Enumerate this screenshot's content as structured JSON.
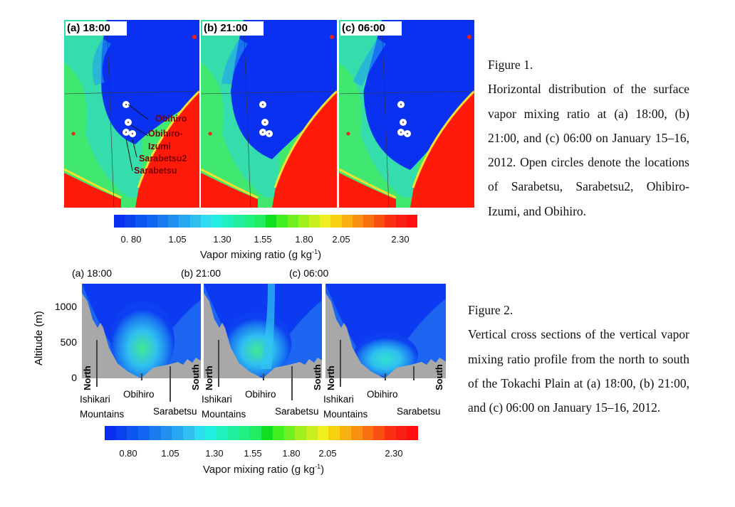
{
  "figure1": {
    "panels": [
      {
        "label": "(a) 18:00",
        "blue_extent": 0.25
      },
      {
        "label": "(b) 21:00",
        "blue_extent": 0.6
      },
      {
        "label": "(c) 06:00",
        "blue_extent": 0.85
      }
    ],
    "stations": [
      "Obihiro",
      "Obihiro-",
      "Izumi",
      "Sarabetsu2",
      "Sarabetsu"
    ],
    "colorbar": {
      "ticks": [
        "0. 80",
        "1.05",
        "1.30",
        "1.55",
        "1.80",
        "2.05",
        "2.30"
      ],
      "title": "Vapor mixing ratio (g kg",
      "title_sup": "-1",
      "title_end": ")"
    },
    "caption": {
      "heading": "Figure 1.",
      "text": "Horizontal distribution of the surface vapor mixing ratio at (a) 18:00, (b) 21:00, and (c) 06:00 on January 15–16, 2012. Open circles denote the locations of Sarabetsu, Sarabetsu2, Ohibiro-Izumi, and Obihiro."
    }
  },
  "figure2": {
    "panels": [
      {
        "label": "(a) 18:00"
      },
      {
        "label": "(b) 21:00"
      },
      {
        "label": "(c) 06:00"
      }
    ],
    "y_axis": {
      "label": "Altitude (m)",
      "ticks": [
        "1000",
        "500",
        "0"
      ]
    },
    "north": "North",
    "south": "South",
    "places": {
      "mountains_1": "Ishikari",
      "mountains_2": "Mountains",
      "obihiro": "Obihiro",
      "sarabetsu": "Sarabetsu"
    },
    "colorbar": {
      "ticks": [
        "0.80",
        "1.05",
        "1.30",
        "1.55",
        "1.80",
        "2.05",
        "2.30"
      ],
      "title": "Vapor mixing ratio (g kg",
      "title_sup": "-1",
      "title_end": ")"
    },
    "caption": {
      "heading": "Figure 2.",
      "text": "Vertical cross sections of the vertical vapor mixing ratio profile from the north to south of the Tokachi Plain at (a) 18:00, (b) 21:00, and (c) 06:00 on January 15–16, 2012."
    }
  },
  "colors": {
    "scale": [
      "#0a2ef0",
      "#0b40f0",
      "#0c55f0",
      "#1066f0",
      "#1a7af0",
      "#2090f0",
      "#28a8f0",
      "#30c0f0",
      "#30dcf0",
      "#20eee0",
      "#20f0c0",
      "#20f0a0",
      "#20f080",
      "#20ee60",
      "#10e020",
      "#40f020",
      "#70f020",
      "#a0f020",
      "#c8f020",
      "#f0f020",
      "#f8d010",
      "#f8b010",
      "#f89010",
      "#f87010",
      "#f85010",
      "#f83010",
      "#f82010",
      "#ff1010"
    ],
    "sea": "#ff1a0a",
    "terrain": "#a8a8a8"
  }
}
